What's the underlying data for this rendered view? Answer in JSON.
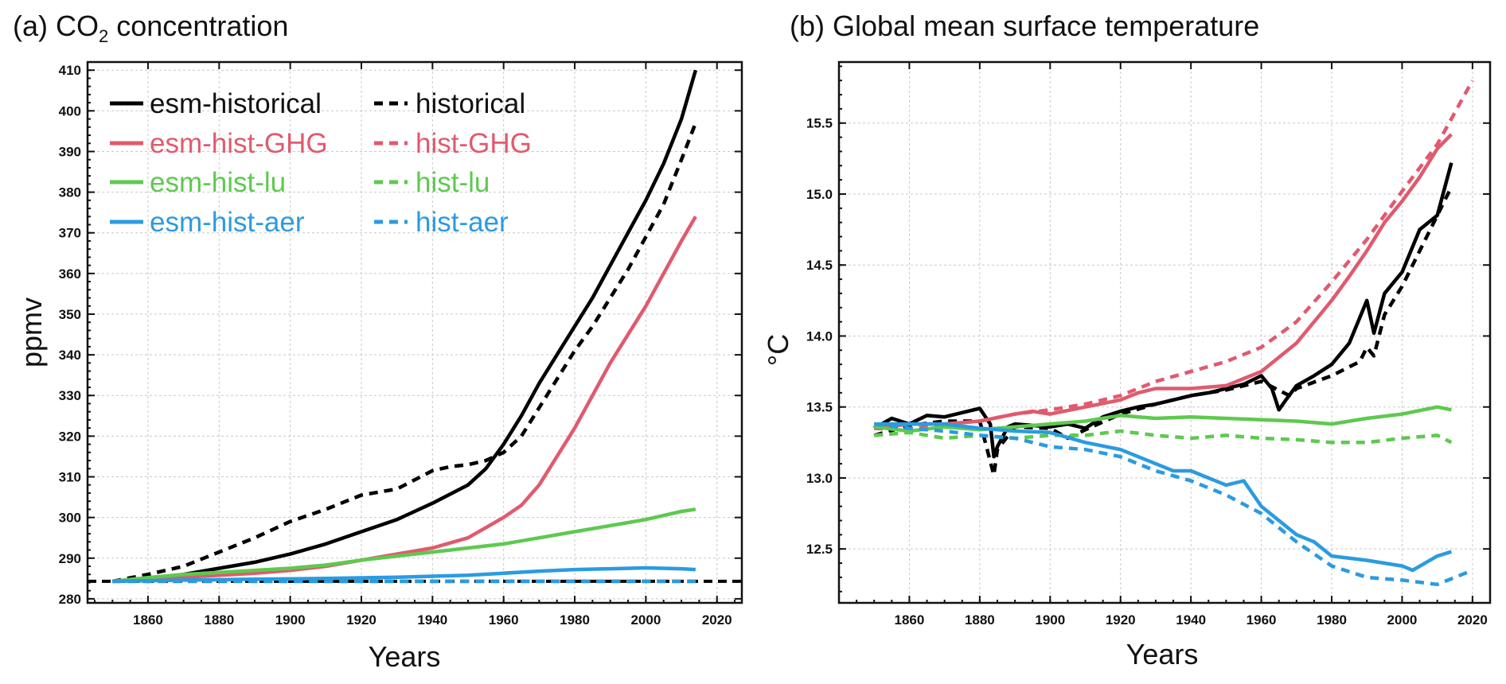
{
  "chart_data": [
    {
      "type": "line",
      "panel": "(a)",
      "title": "(a) CO",
      "title_sub": "2",
      "title_rest": " concentration",
      "xlabel": "Years",
      "ylabel": "ppmv",
      "xlim": [
        1843,
        2027
      ],
      "ylim": [
        279,
        412
      ],
      "xticks": [
        1860,
        1880,
        1900,
        1920,
        1940,
        1960,
        1980,
        2000,
        2020
      ],
      "yticks": [
        280,
        290,
        300,
        310,
        320,
        330,
        340,
        350,
        360,
        370,
        380,
        390,
        400,
        410
      ],
      "grid": true,
      "legend_position": "top-left",
      "series": [
        {
          "name": "esm-historical",
          "color": "#000000",
          "dash": false,
          "x": [
            1850,
            1860,
            1870,
            1880,
            1890,
            1900,
            1910,
            1920,
            1930,
            1940,
            1950,
            1955,
            1960,
            1965,
            1970,
            1975,
            1980,
            1985,
            1990,
            1995,
            2000,
            2005,
            2010,
            2014
          ],
          "y": [
            284.3,
            285,
            286,
            287.5,
            289,
            291,
            293.5,
            296.5,
            299.5,
            303.5,
            308,
            312,
            318,
            325,
            333,
            340,
            347,
            354,
            362,
            370,
            378,
            387,
            398,
            410
          ]
        },
        {
          "name": "historical",
          "color": "#000000",
          "dash": true,
          "x": [
            1850,
            1860,
            1870,
            1880,
            1890,
            1900,
            1910,
            1920,
            1930,
            1940,
            1945,
            1950,
            1955,
            1960,
            1965,
            1970,
            1975,
            1980,
            1985,
            1990,
            1995,
            2000,
            2005,
            2010,
            2014
          ],
          "y": [
            284.3,
            286,
            288,
            291.5,
            295,
            299,
            302,
            305.5,
            307,
            311.5,
            312.5,
            313,
            314,
            316,
            320,
            327,
            334,
            341,
            347,
            354,
            361,
            369,
            377,
            388,
            397
          ]
        },
        {
          "name": "esm-hist-GHG",
          "color": "#e05a6e",
          "dash": false,
          "x": [
            1850,
            1860,
            1870,
            1880,
            1890,
            1900,
            1910,
            1920,
            1930,
            1940,
            1950,
            1955,
            1960,
            1965,
            1970,
            1975,
            1980,
            1985,
            1990,
            1995,
            2000,
            2005,
            2010,
            2014
          ],
          "y": [
            284.3,
            284.8,
            285.3,
            285.8,
            286.3,
            287,
            288,
            289.5,
            291,
            292.5,
            295,
            297.5,
            300,
            303,
            308,
            315,
            322,
            330,
            338,
            345,
            352,
            360,
            368,
            374
          ]
        },
        {
          "name": "hist-GHG",
          "color": "#e05a6e",
          "dash": true,
          "x": [
            1850,
            2014
          ],
          "y": [
            284.3,
            284.3
          ]
        },
        {
          "name": "esm-hist-lu",
          "color": "#5ec94f",
          "dash": false,
          "x": [
            1850,
            1860,
            1870,
            1880,
            1890,
            1900,
            1910,
            1920,
            1930,
            1940,
            1950,
            1960,
            1970,
            1980,
            1990,
            2000,
            2010,
            2014
          ],
          "y": [
            284.3,
            285.2,
            286,
            286.5,
            287,
            287.5,
            288.3,
            289.5,
            290.5,
            291.5,
            292.5,
            293.5,
            295,
            296.5,
            298,
            299.5,
            301.5,
            302
          ]
        },
        {
          "name": "hist-lu",
          "color": "#5ec94f",
          "dash": true,
          "x": [
            1850,
            2014
          ],
          "y": [
            284.3,
            284.3
          ]
        },
        {
          "name": "esm-hist-aer",
          "color": "#2b9be0",
          "dash": false,
          "x": [
            1850,
            1870,
            1890,
            1910,
            1930,
            1950,
            1960,
            1970,
            1980,
            1990,
            2000,
            2010,
            2014
          ],
          "y": [
            284.3,
            284.6,
            284.8,
            285,
            285.3,
            285.8,
            286.3,
            286.8,
            287.2,
            287.4,
            287.6,
            287.4,
            287.2
          ]
        },
        {
          "name": "hist-aer",
          "color": "#2b9be0",
          "dash": true,
          "x": [
            1850,
            2014
          ],
          "y": [
            284.3,
            284.3
          ]
        }
      ],
      "legend": {
        "left": [
          "esm-historical",
          "esm-hist-GHG",
          "esm-hist-lu",
          "esm-hist-aer"
        ],
        "right": [
          "historical",
          "hist-GHG",
          "hist-lu",
          "hist-aer"
        ]
      },
      "extra_lines": [
        {
          "kind": "hline",
          "y": 284.3,
          "color": "#000000",
          "dash": true,
          "x": [
            1843,
            2027
          ]
        }
      ]
    },
    {
      "type": "line",
      "panel": "(b)",
      "title": "(b) Global mean surface temperature",
      "xlabel": "Years",
      "ylabel": "°C",
      "xlim": [
        1840,
        2025
      ],
      "ylim": [
        12.12,
        15.93
      ],
      "xticks": [
        1860,
        1880,
        1900,
        1920,
        1940,
        1960,
        1980,
        2000,
        2020
      ],
      "yticks": [
        12.5,
        13.0,
        13.5,
        14.0,
        14.5,
        15.0,
        15.5
      ],
      "ytick_labels": [
        "12.5",
        "13.0",
        "13.5",
        "14.0",
        "14.5",
        "15.0",
        "15.5"
      ],
      "grid": true,
      "series": [
        {
          "name": "esm-historical",
          "color": "#000000",
          "dash": false,
          "x": [
            1850,
            1855,
            1860,
            1865,
            1870,
            1875,
            1880,
            1883,
            1884,
            1885,
            1888,
            1890,
            1895,
            1900,
            1905,
            1910,
            1915,
            1920,
            1925,
            1930,
            1935,
            1940,
            1945,
            1950,
            1955,
            1960,
            1963,
            1965,
            1967,
            1970,
            1975,
            1980,
            1985,
            1990,
            1992,
            1995,
            2000,
            2005,
            2010,
            2014
          ],
          "y": [
            13.35,
            13.42,
            13.38,
            13.44,
            13.43,
            13.46,
            13.49,
            13.38,
            13.15,
            13.22,
            13.36,
            13.38,
            13.37,
            13.36,
            13.38,
            13.35,
            13.43,
            13.47,
            13.5,
            13.52,
            13.55,
            13.58,
            13.6,
            13.63,
            13.66,
            13.72,
            13.63,
            13.48,
            13.55,
            13.65,
            13.72,
            13.8,
            13.95,
            14.25,
            14.02,
            14.3,
            14.45,
            14.75,
            14.85,
            15.22
          ]
        },
        {
          "name": "historical",
          "color": "#000000",
          "dash": true,
          "x": [
            1850,
            1860,
            1870,
            1880,
            1884,
            1885,
            1890,
            1900,
            1905,
            1910,
            1920,
            1930,
            1940,
            1950,
            1960,
            1968,
            1970,
            1980,
            1988,
            1990,
            1992,
            1995,
            2000,
            2005,
            2010,
            2014
          ],
          "y": [
            13.3,
            13.37,
            13.4,
            13.4,
            13.02,
            13.2,
            13.36,
            13.35,
            13.28,
            13.34,
            13.45,
            13.52,
            13.58,
            13.62,
            13.68,
            13.58,
            13.63,
            13.72,
            13.82,
            13.92,
            13.86,
            14.15,
            14.35,
            14.6,
            14.85,
            15.05
          ]
        },
        {
          "name": "esm-hist-GHG",
          "color": "#e05a6e",
          "dash": false,
          "x": [
            1850,
            1860,
            1870,
            1880,
            1890,
            1895,
            1900,
            1910,
            1920,
            1925,
            1930,
            1940,
            1950,
            1955,
            1960,
            1965,
            1970,
            1975,
            1980,
            1985,
            1990,
            1995,
            2000,
            2005,
            2010,
            2014
          ],
          "y": [
            13.35,
            13.38,
            13.38,
            13.4,
            13.45,
            13.47,
            13.45,
            13.5,
            13.55,
            13.6,
            13.63,
            13.63,
            13.65,
            13.7,
            13.75,
            13.85,
            13.95,
            14.1,
            14.25,
            14.42,
            14.6,
            14.8,
            14.95,
            15.12,
            15.32,
            15.42
          ]
        },
        {
          "name": "hist-GHG",
          "color": "#e05a6e",
          "dash": true,
          "x": [
            1850,
            1860,
            1870,
            1880,
            1890,
            1900,
            1910,
            1920,
            1930,
            1940,
            1950,
            1960,
            1970,
            1980,
            1990,
            2000,
            2010,
            2020
          ],
          "y": [
            13.35,
            13.34,
            13.38,
            13.4,
            13.45,
            13.48,
            13.52,
            13.58,
            13.68,
            13.75,
            13.82,
            13.92,
            14.1,
            14.38,
            14.68,
            15.02,
            15.35,
            15.8
          ]
        },
        {
          "name": "esm-hist-lu",
          "color": "#5ec94f",
          "dash": false,
          "x": [
            1850,
            1860,
            1870,
            1880,
            1890,
            1900,
            1910,
            1920,
            1930,
            1940,
            1950,
            1960,
            1970,
            1980,
            1990,
            2000,
            2010,
            2014
          ],
          "y": [
            13.36,
            13.33,
            13.36,
            13.34,
            13.36,
            13.38,
            13.4,
            13.44,
            13.42,
            13.43,
            13.42,
            13.41,
            13.4,
            13.38,
            13.42,
            13.45,
            13.5,
            13.48
          ]
        },
        {
          "name": "hist-lu",
          "color": "#5ec94f",
          "dash": true,
          "x": [
            1850,
            1860,
            1870,
            1880,
            1890,
            1900,
            1910,
            1920,
            1930,
            1940,
            1950,
            1960,
            1970,
            1980,
            1990,
            2000,
            2010,
            2014
          ],
          "y": [
            13.3,
            13.32,
            13.28,
            13.3,
            13.28,
            13.3,
            13.3,
            13.33,
            13.3,
            13.28,
            13.3,
            13.28,
            13.27,
            13.25,
            13.25,
            13.28,
            13.3,
            13.25
          ]
        },
        {
          "name": "esm-hist-aer",
          "color": "#2b9be0",
          "dash": false,
          "x": [
            1850,
            1860,
            1870,
            1880,
            1890,
            1900,
            1910,
            1920,
            1930,
            1935,
            1940,
            1950,
            1955,
            1960,
            1970,
            1975,
            1980,
            1990,
            2000,
            2003,
            2010,
            2014
          ],
          "y": [
            13.38,
            13.38,
            13.38,
            13.35,
            13.33,
            13.32,
            13.25,
            13.2,
            13.1,
            13.05,
            13.05,
            12.95,
            12.98,
            12.8,
            12.6,
            12.55,
            12.45,
            12.42,
            12.38,
            12.35,
            12.45,
            12.48
          ]
        },
        {
          "name": "hist-aer",
          "color": "#2b9be0",
          "dash": true,
          "x": [
            1850,
            1860,
            1870,
            1880,
            1890,
            1900,
            1910,
            1920,
            1930,
            1940,
            1950,
            1960,
            1970,
            1980,
            1990,
            2000,
            2010,
            2020
          ],
          "y": [
            13.38,
            13.35,
            13.33,
            13.3,
            13.28,
            13.22,
            13.2,
            13.15,
            13.05,
            12.98,
            12.88,
            12.75,
            12.55,
            12.38,
            12.3,
            12.28,
            12.25,
            12.35
          ]
        }
      ]
    }
  ]
}
